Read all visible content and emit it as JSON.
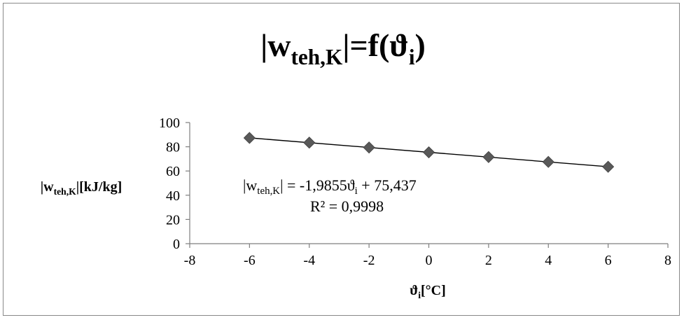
{
  "chart_data": {
    "type": "scatter",
    "title": {
      "prefix": "|w",
      "sub": "teh,K",
      "mid": "|=f(ϑ",
      "sub2": "i",
      "suffix": ")"
    },
    "xlabel": {
      "main": "ϑ",
      "sub": "i",
      "unit": "[°C]"
    },
    "ylabel": {
      "prefix": "|w",
      "sub": "teh,K",
      "unit": "|[kJ/kg]"
    },
    "xlim": [
      -8,
      8
    ],
    "ylim": [
      0,
      100
    ],
    "x_ticks": [
      "-8",
      "-6",
      "-4",
      "-2",
      "0",
      "2",
      "4",
      "6",
      "8"
    ],
    "y_ticks": [
      "0",
      "20",
      "40",
      "60",
      "80",
      "100"
    ],
    "x_tick_values": [
      -8,
      -6,
      -4,
      -2,
      0,
      2,
      4,
      6,
      8
    ],
    "y_tick_values": [
      0,
      20,
      40,
      60,
      80,
      100
    ],
    "series": [
      {
        "x": [
          -6,
          -4,
          -2,
          0,
          2,
          4,
          6
        ],
        "y": [
          87.3,
          83.4,
          79.4,
          75.4,
          71.5,
          67.5,
          63.5
        ],
        "marker": "diamond",
        "color": "#595959"
      }
    ],
    "trendline": {
      "slope": -1.9855,
      "intercept": 75.437,
      "x_range": [
        -6,
        6
      ],
      "color": "#000000",
      "equation": {
        "prefix": "|w",
        "sub": "teh,K",
        "mid": "| = -1,9855ϑ",
        "sub2": "i",
        "suffix": " + 75,437"
      },
      "r2": "R² = 0,9998"
    },
    "grid": false,
    "legend": "none"
  }
}
